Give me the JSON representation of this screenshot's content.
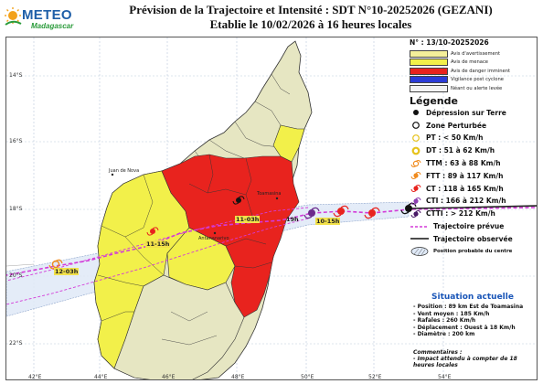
{
  "header": {
    "logo_text": "METEO",
    "logo_sub": "Madagascar",
    "title_line1": "Prévision de la Trajectoire et Intensité : SDT N°10-20252026 (GEZANI)",
    "title_line2": "Etablie le 10/02/2026 à 16 heures locales"
  },
  "colors": {
    "avertissement": "#f4ef9a",
    "menace": "#f2f04a",
    "danger": "#e8231e",
    "vigilance": "#2b3bd6",
    "neant": "#e6e6c2",
    "track_forecast": "#d33ad8",
    "land": "#e6e6c2",
    "danger_zone": "#e8231e",
    "menace_zone": "#f2f04a"
  },
  "map": {
    "latitudes": [
      "14°S",
      "16°S",
      "18°S",
      "20°S",
      "22°S"
    ],
    "longitudes": [
      "42°E",
      "44°E",
      "46°E",
      "48°E",
      "50°E",
      "52°E",
      "54°E"
    ],
    "cities": [
      {
        "name": "Juan de Nova"
      },
      {
        "name": "Toamasina"
      },
      {
        "name": "Antananarivo"
      }
    ],
    "track_labels": [
      {
        "text": "10-15h"
      },
      {
        "text": "11-03h"
      },
      {
        "text": "11-15h"
      },
      {
        "text": "12-03h"
      },
      {
        "text": "19h"
      }
    ]
  },
  "legend": {
    "date": "N° : 13/10-20252026",
    "vigilance": [
      {
        "label": "Avis d'avertissement",
        "color": "#f4ef9a"
      },
      {
        "label": "Avis de menace",
        "color": "#f2f04a"
      },
      {
        "label": "Avis de danger imminent",
        "color": "#e8231e"
      },
      {
        "label": "Vigilance post cyclone",
        "color": "#2b3bd6"
      },
      {
        "label": "Néant ou alerte levée",
        "color": "#f3f3f3"
      }
    ],
    "title": "Légende",
    "categories": [
      {
        "label": "Dépression sur Terre",
        "icon": "filled-dot-icon"
      },
      {
        "label": "Zone Perturbée",
        "icon": "open-circle-icon"
      },
      {
        "label": "PT : < 50 Km/h",
        "icon": "yellow-circle-icon"
      },
      {
        "label": "DT : 51 à 62 Km/h",
        "icon": "yellow-thick-circle-icon"
      },
      {
        "label": "TTM : 63 à 88 Km/h",
        "icon": "orange-cyclone-icon"
      },
      {
        "label": "FTT : 89 à 117 Km/h",
        "icon": "orange-red-cyclone-icon"
      },
      {
        "label": "CT : 118 à 165 Km/h",
        "icon": "red-cyclone-icon"
      },
      {
        "label": "CTI : 166 à 212 Km/h",
        "icon": "purple-cyclone-icon"
      },
      {
        "label": "CTTI : > 212 Km/h",
        "icon": "dark-purple-cyclone-icon"
      },
      {
        "label": "Trajectoire prévue",
        "icon": "dashed-magenta-line-icon"
      },
      {
        "label": "Trajectoire observée",
        "icon": "solid-black-line-icon"
      },
      {
        "label": "Position probable du centre",
        "icon": "hatched-ellipse-icon"
      }
    ]
  },
  "situation": {
    "title": "Situation actuelle",
    "lines": [
      "- Position : 89 km Est de Toamasina",
      "- Vent moyen : 185 Km/h",
      "- Rafales : 260 Km/h",
      "- Déplacement : Ouest à 18 Km/h",
      "- Diamètre : 200 km"
    ]
  },
  "comments": {
    "title": "Commentaires :",
    "lines": [
      "- Impact attendu à compter de 18",
      "heures locales"
    ]
  }
}
